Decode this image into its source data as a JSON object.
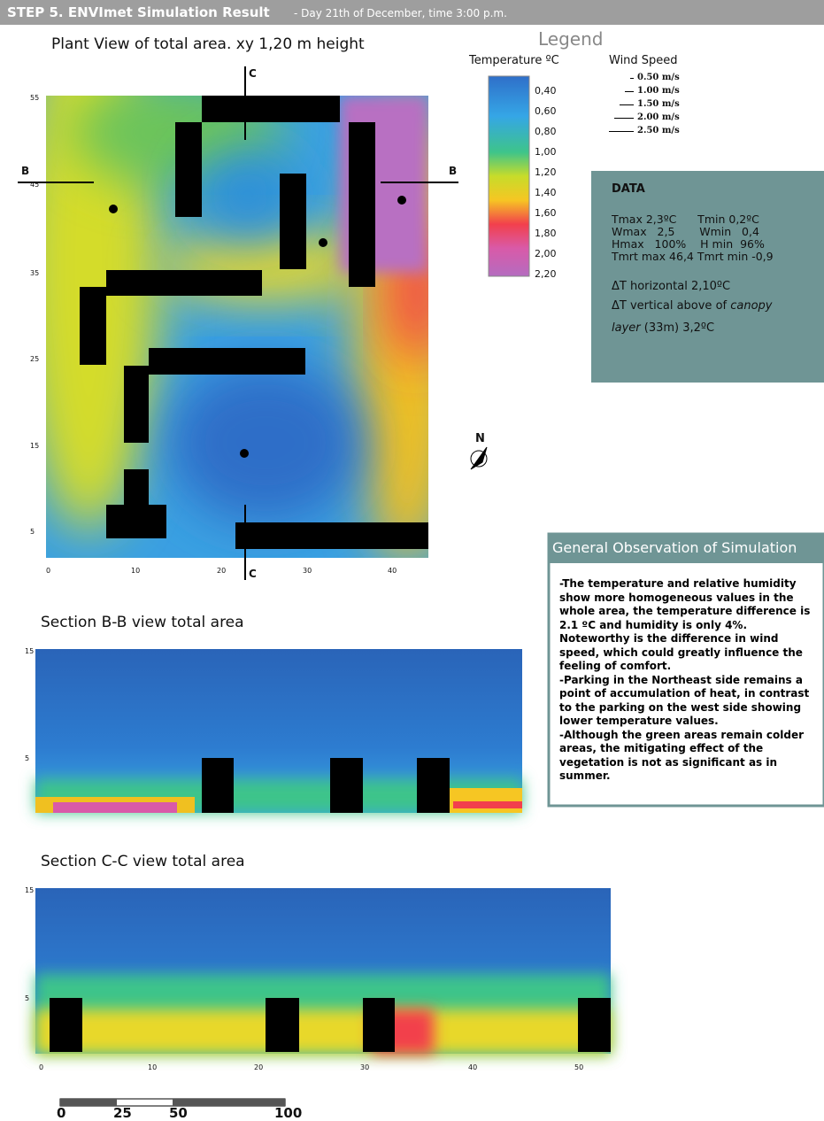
{
  "header": {
    "title": "STEP 5. ENVImet Simulation Result",
    "subtitle": "- Day 21th of December, time 3:00 p.m."
  },
  "plant_view": {
    "title": "Plant View of total area. xy 1,20 m height",
    "x_ticks": [
      "0",
      "10",
      "20",
      "30",
      "40"
    ],
    "y_ticks": [
      "55",
      "45",
      "35",
      "25",
      "15",
      "5"
    ],
    "section_b": "B",
    "section_c": "C"
  },
  "legend": {
    "title": "Legend",
    "temperature": {
      "title": "Temperature ºC",
      "labels": [
        "0,40",
        "0,60",
        "0,80",
        "1,00",
        "1,20",
        "1,40",
        "1,60",
        "1,80",
        "2,00",
        "2,20"
      ]
    },
    "wind": {
      "title": "Wind Speed",
      "labels": [
        "0.50 m/s",
        "1.00 m/s",
        "1.50 m/s",
        "2.00 m/s",
        "2.50 m/s"
      ]
    }
  },
  "data_box": {
    "title": "DATA",
    "lines": [
      "Tmax 2,3ºC      Tmin 0,2ºC",
      "Wmax   2,5       Wmin   0,4",
      "Hmax   100%    H min  96%",
      "Tmrt max 46,4 Tmrt min -0,9"
    ],
    "dt_horizontal": "ΔT horizontal 2,10ºC",
    "dt_vertical": {
      "text": "ΔT vertical above of",
      "em": "canopy"
    },
    "dt_layer": {
      "em": "layer",
      "text": "(33m) 3,2ºC"
    }
  },
  "observation": {
    "title": "General Observation of Simulation",
    "items": [
      "-The temperature and relative humidity show more homogeneous values in the whole area, the temperature difference is 2.1 ºC and humidity is only 4%. Noteworthy is the difference in wind speed, which could greatly influence the feeling of comfort.",
      "-Parking in the Northeast side remains a point of accumulation of heat, in contrast to the parking on the west side showing lower temperature values.",
      "-Although the green areas remain colder areas, the mitigating effect of the vegetation is not as significant as in summer."
    ]
  },
  "section_bb": {
    "title": "Section B-B view total area",
    "y_ticks": [
      "15",
      "5"
    ]
  },
  "section_cc": {
    "title": "Section C-C view total area",
    "x_ticks": [
      "0",
      "10",
      "20",
      "30",
      "40",
      "50"
    ],
    "y_ticks": [
      "15",
      "5"
    ]
  },
  "scale_bar": {
    "labels": [
      "0",
      "25",
      "50",
      "100"
    ]
  },
  "north": "N"
}
